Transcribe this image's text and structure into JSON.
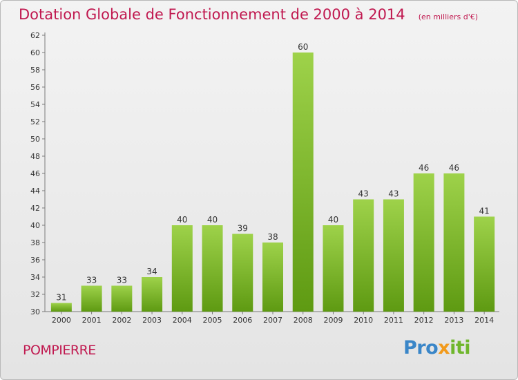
{
  "title": "Dotation Globale de Fonctionnement de 2000 à 2014",
  "subtitle": "(en milliers d'€)",
  "commune": "POMPIERRE",
  "brand": {
    "parts": [
      "Pro",
      "x",
      "iti"
    ],
    "colors": [
      "#3a86c8",
      "#f29a1b",
      "#6fb62c"
    ]
  },
  "colors": {
    "title": "#c0184f",
    "bar_light": "#9ed24a",
    "bar_dark": "#5e9a12"
  },
  "chart_data": {
    "type": "bar",
    "categories": [
      "2000",
      "2001",
      "2002",
      "2003",
      "2004",
      "2005",
      "2006",
      "2007",
      "2008",
      "2009",
      "2010",
      "2011",
      "2012",
      "2013",
      "2014"
    ],
    "values": [
      31,
      33,
      33,
      34,
      40,
      40,
      39,
      38,
      60,
      40,
      43,
      43,
      46,
      46,
      41
    ],
    "ylim": [
      30,
      62
    ],
    "yticks": [
      30,
      32,
      34,
      36,
      38,
      40,
      42,
      44,
      46,
      48,
      50,
      52,
      54,
      56,
      58,
      60,
      62
    ],
    "grid": false,
    "data_labels": true
  }
}
